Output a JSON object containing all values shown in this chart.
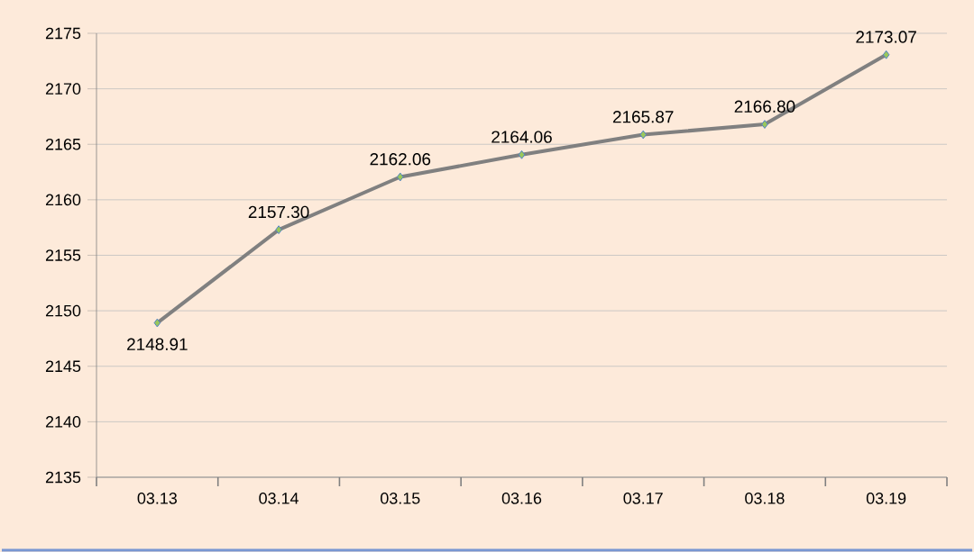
{
  "chart_data": {
    "type": "line",
    "categories": [
      "03.13",
      "03.14",
      "03.15",
      "03.16",
      "03.17",
      "03.18",
      "03.19"
    ],
    "series": [
      {
        "color": "#808080",
        "values": [
          2148.91,
          2157.3,
          2162.06,
          2164.06,
          2165.87,
          2166.8,
          2173.07
        ],
        "value_labels": [
          "2148.91",
          "2157.30",
          "2162.06",
          "2164.06",
          "2165.87",
          "2166.80",
          "2173.07"
        ]
      }
    ],
    "ylim": [
      2135,
      2175
    ],
    "yticks": [
      2135,
      2140,
      2145,
      2150,
      2155,
      2160,
      2165,
      2170,
      2175
    ],
    "grid": "y",
    "marker": "diamond",
    "line_style": "solid"
  }
}
